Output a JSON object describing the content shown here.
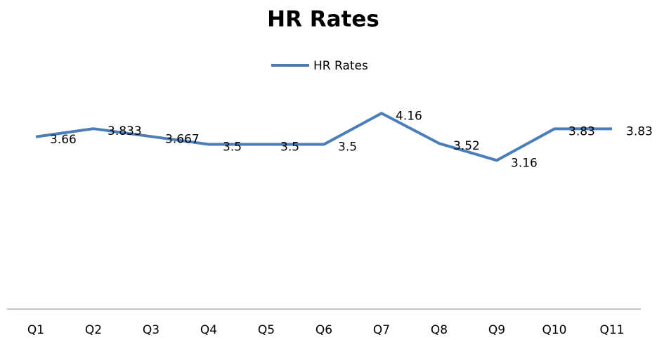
{
  "chart_data": {
    "type": "line",
    "title": "HR Rates",
    "categories": [
      "Q1",
      "Q2",
      "Q3",
      "Q4",
      "Q5",
      "Q6",
      "Q7",
      "Q8",
      "Q9",
      "Q10",
      "Q11"
    ],
    "series": [
      {
        "name": "HR Rates",
        "color": "#4a7ebb",
        "values": [
          3.66,
          3.833,
          3.667,
          3.5,
          3.5,
          3.5,
          4.16,
          3.52,
          3.16,
          3.83,
          3.83
        ]
      }
    ],
    "ylim": [
      0,
      5
    ],
    "legend": "top"
  }
}
